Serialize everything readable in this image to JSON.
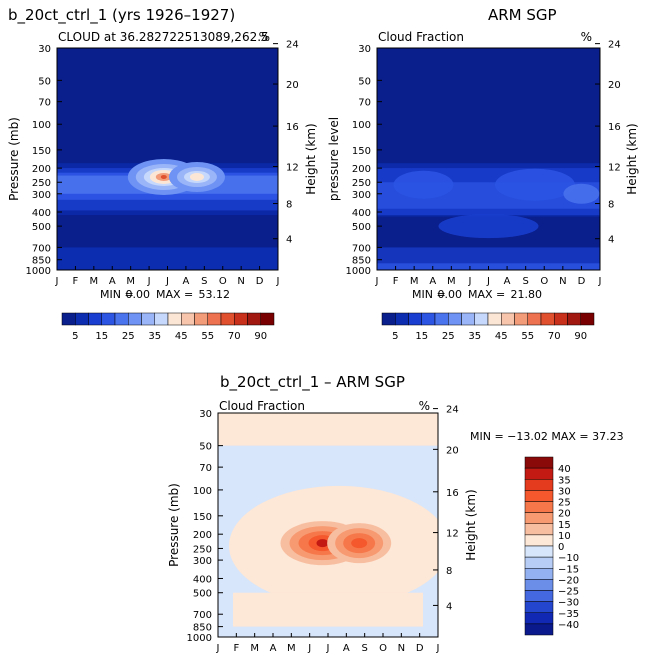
{
  "colors": {
    "bg_dark_blue": "#0a1e8c",
    "cream": "#fde7d6",
    "light_blue": "#d7e6fb",
    "panel_border": "#000000"
  },
  "chart_data": [
    {
      "type": "heatmap",
      "id": "model",
      "title": "b_20ct_ctrl_1 (yrs 1926–1927)",
      "subtitle": "CLOUD at 36.282722513089,262.5",
      "unit": "%",
      "ylabel_left": "Pressure (mb)",
      "ylabel_right": "Height (km)",
      "x_ticks": [
        "J",
        "F",
        "M",
        "A",
        "M",
        "J",
        "J",
        "A",
        "S",
        "O",
        "N",
        "D",
        "J"
      ],
      "y_ticks_left": [
        "30",
        "50",
        "70",
        "100",
        "150",
        "200",
        "250",
        "300",
        "400",
        "500",
        "700",
        "850",
        "1000"
      ],
      "y_ticks_right": [
        "24",
        "20",
        "16",
        "12",
        "8",
        "4"
      ],
      "min_label": "MIN =",
      "min": "0.00",
      "max_label": "MAX =",
      "max": "53.12",
      "features": [
        {
          "name": "upper cloud maximum",
          "month": 5.8,
          "pressure": 230,
          "value": 53
        },
        {
          "name": "upper cloud secondary",
          "month": 7.5,
          "pressure": 230,
          "value": 45
        }
      ],
      "colorbar": {
        "labels": [
          "5",
          "15",
          "25",
          "35",
          "45",
          "55",
          "70",
          "90"
        ],
        "levels": [
          5,
          10,
          15,
          20,
          25,
          30,
          35,
          40,
          45,
          50,
          55,
          60,
          70,
          80,
          90
        ],
        "colors": [
          "#0a1e8c",
          "#0c2db0",
          "#1a3fd0",
          "#2d55e4",
          "#4a73ee",
          "#6e93f4",
          "#9ab5f8",
          "#c6d8fb",
          "#fbe6d6",
          "#f7c5ab",
          "#f29c7a",
          "#ec7250",
          "#e0502e",
          "#c8301c",
          "#a01810",
          "#780000"
        ]
      }
    },
    {
      "type": "heatmap",
      "id": "obs",
      "title": "ARM SGP",
      "subtitle": "Cloud Fraction",
      "unit": "%",
      "ylabel_left": "pressure level",
      "ylabel_right": "Height (km)",
      "x_ticks": [
        "J",
        "F",
        "M",
        "A",
        "M",
        "J",
        "J",
        "A",
        "S",
        "O",
        "N",
        "D",
        "J"
      ],
      "y_ticks_left": [
        "30",
        "50",
        "70",
        "100",
        "150",
        "200",
        "250",
        "300",
        "400",
        "500",
        "700",
        "850",
        "1000"
      ],
      "y_ticks_right": [
        "24",
        "20",
        "16",
        "12",
        "8",
        "4"
      ],
      "min_label": "MIN =",
      "min": "0.00",
      "max_label": "MAX =",
      "max": "21.80",
      "colorbar": {
        "labels": [
          "5",
          "15",
          "25",
          "35",
          "45",
          "55",
          "70",
          "90"
        ],
        "levels": [
          5,
          10,
          15,
          20,
          25,
          30,
          35,
          40,
          45,
          50,
          55,
          60,
          70,
          80,
          90
        ],
        "colors": [
          "#0a1e8c",
          "#0c2db0",
          "#1a3fd0",
          "#2d55e4",
          "#4a73ee",
          "#6e93f4",
          "#9ab5f8",
          "#c6d8fb",
          "#fbe6d6",
          "#f7c5ab",
          "#f29c7a",
          "#ec7250",
          "#e0502e",
          "#c8301c",
          "#a01810",
          "#780000"
        ]
      }
    },
    {
      "type": "heatmap",
      "id": "diff",
      "title": "b_20ct_ctrl_1 – ARM SGP",
      "subtitle": "Cloud Fraction",
      "unit": "%",
      "ylabel_left": "Pressure (mb)",
      "ylabel_right": "Height (km)",
      "x_ticks": [
        "J",
        "F",
        "M",
        "A",
        "M",
        "J",
        "J",
        "A",
        "S",
        "O",
        "N",
        "D",
        "J"
      ],
      "y_ticks_left": [
        "30",
        "50",
        "70",
        "100",
        "150",
        "200",
        "250",
        "300",
        "400",
        "500",
        "700",
        "850",
        "1000"
      ],
      "y_ticks_right": [
        "24",
        "20",
        "16",
        "12",
        "8",
        "4"
      ],
      "minmax_text": "MIN = −13.02 MAX =  37.23",
      "features": [
        {
          "name": "difference maximum",
          "month": 5.8,
          "pressure": 230,
          "value": 37
        },
        {
          "name": "difference secondary",
          "month": 7.5,
          "pressure": 230,
          "value": 30
        }
      ],
      "colorbar": {
        "labels": [
          "40",
          "35",
          "30",
          "25",
          "20",
          "15",
          "10",
          "0",
          "−10",
          "−15",
          "−20",
          "−25",
          "−30",
          "−35",
          "−40"
        ],
        "colors": [
          "#8a0a0a",
          "#c41a14",
          "#e43a1e",
          "#f4582c",
          "#f6784a",
          "#f79a72",
          "#f8bea0",
          "#fde7d6",
          "#d7e6fb",
          "#b7cdf6",
          "#93b1f0",
          "#6b8ee9",
          "#4468e0",
          "#2446cf",
          "#1028b4",
          "#0a1a8c"
        ]
      }
    }
  ]
}
